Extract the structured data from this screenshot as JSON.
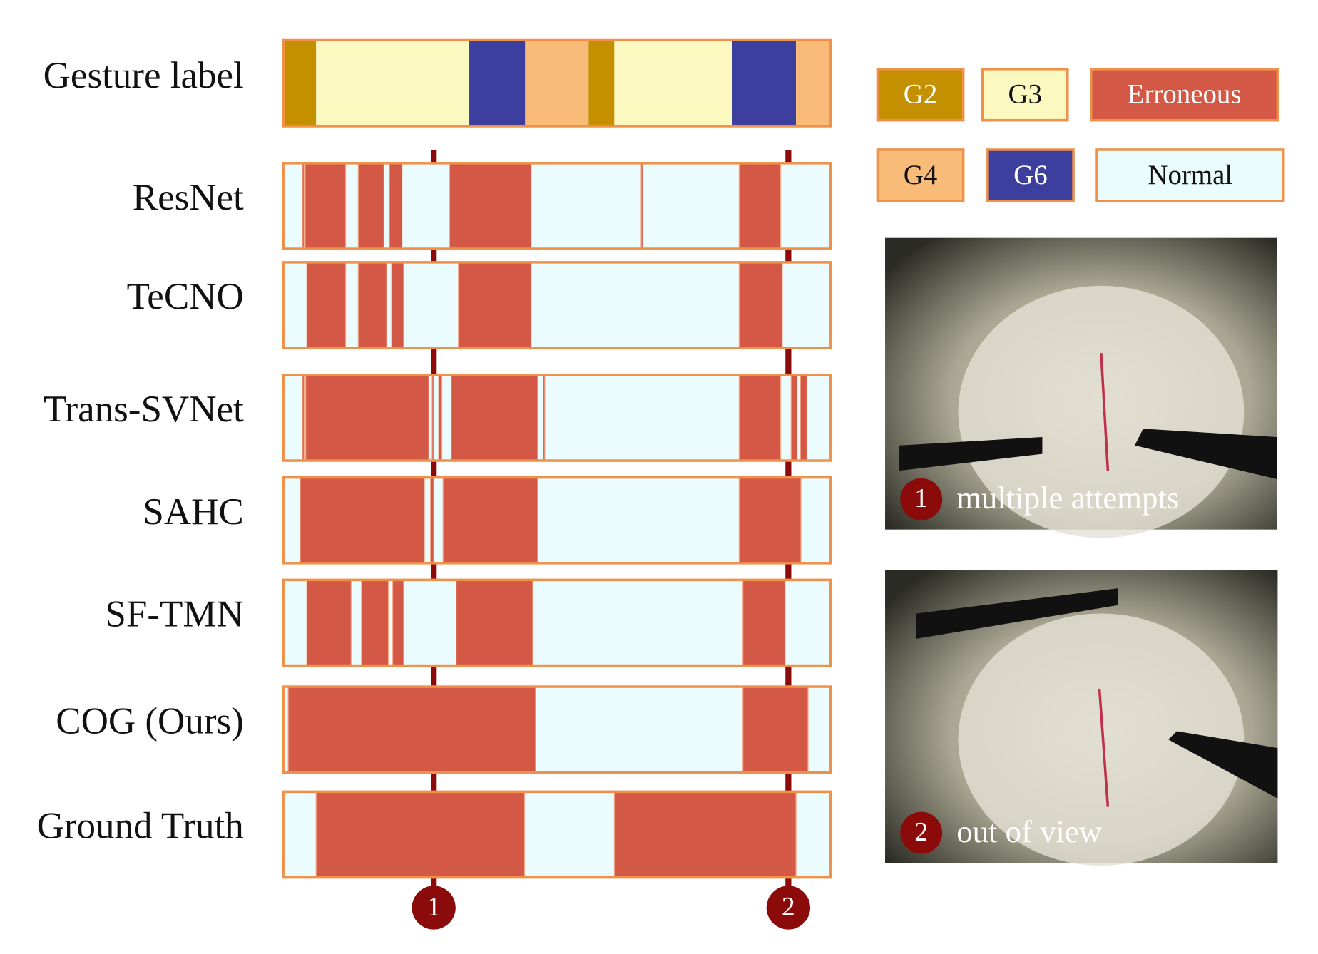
{
  "chart_data": {
    "type": "timeline",
    "xlim": [
      0,
      100
    ],
    "gesture": {
      "label": "Gesture label",
      "segments": [
        {
          "class": "G2",
          "start": 0,
          "end": 6
        },
        {
          "class": "G3",
          "start": 6,
          "end": 34
        },
        {
          "class": "G6",
          "start": 34,
          "end": 44.2
        },
        {
          "class": "G4",
          "start": 44.2,
          "end": 55.8
        },
        {
          "class": "G2",
          "start": 55.8,
          "end": 60.5
        },
        {
          "class": "G3",
          "start": 60.5,
          "end": 82
        },
        {
          "class": "G6",
          "start": 82,
          "end": 93.7
        },
        {
          "class": "G4",
          "start": 93.7,
          "end": 100
        }
      ]
    },
    "rows": [
      {
        "label": "ResNet",
        "errors": [
          [
            3.5,
            3.8
          ],
          [
            4.0,
            11.4
          ],
          [
            13.7,
            18.4
          ],
          [
            19.4,
            21.7
          ],
          [
            30.4,
            45.3
          ],
          [
            65.4,
            65.7
          ],
          [
            83.3,
            90.9
          ]
        ]
      },
      {
        "label": "TeCNO",
        "errors": [
          [
            4.3,
            11.4
          ],
          [
            13.7,
            18.9
          ],
          [
            19.8,
            22.0
          ],
          [
            32.0,
            45.3
          ],
          [
            83.3,
            91.2
          ]
        ]
      },
      {
        "label": "Trans-SVNet",
        "errors": [
          [
            3.5,
            3.8
          ],
          [
            4.1,
            26.6
          ],
          [
            27.2,
            27.5
          ],
          [
            28.4,
            29.0
          ],
          [
            30.7,
            46.5
          ],
          [
            47.5,
            47.8
          ],
          [
            83.3,
            90.9
          ],
          [
            92.8,
            93.9
          ],
          [
            94.5,
            95.7
          ]
        ]
      },
      {
        "label": "SAHC",
        "errors": [
          [
            3.1,
            25.8
          ],
          [
            26.9,
            27.5
          ],
          [
            29.2,
            46.5
          ],
          [
            83.3,
            94.6
          ]
        ]
      },
      {
        "label": "SF-TMN",
        "errors": [
          [
            4.3,
            12.4
          ],
          [
            14.3,
            19.2
          ],
          [
            20.0,
            22.0
          ],
          [
            31.6,
            45.6
          ],
          [
            84.0,
            91.7
          ]
        ]
      },
      {
        "label": "COG (Ours)",
        "errors": [
          [
            0.9,
            46.1
          ],
          [
            84.0,
            95.9
          ]
        ]
      },
      {
        "label": "Ground Truth",
        "errors": [
          [
            6.0,
            44.1
          ],
          [
            60.5,
            93.7
          ]
        ]
      }
    ],
    "legend": [
      {
        "name": "G2",
        "color": "#c49000"
      },
      {
        "name": "G3",
        "color": "#fbf8c0"
      },
      {
        "name": "Erroneous",
        "color": "#d35845"
      },
      {
        "name": "G4",
        "color": "#f9bb78"
      },
      {
        "name": "G6",
        "color": "#3d3f9f"
      },
      {
        "name": "Normal",
        "color": "#eafcfd"
      }
    ],
    "markers": [
      {
        "label": "1",
        "position": 27.5
      },
      {
        "label": "2",
        "position": 92.3
      }
    ]
  },
  "images": [
    {
      "number": "1",
      "caption": "multiple attempts"
    },
    {
      "number": "2",
      "caption": "out of view"
    }
  ]
}
